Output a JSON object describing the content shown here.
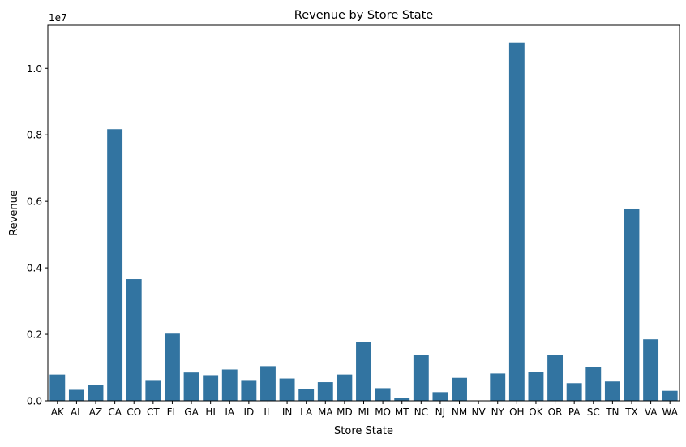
{
  "chart_data": {
    "type": "bar",
    "title": "Revenue by Store State",
    "xlabel": "Store State",
    "ylabel": "Revenue",
    "y_offset_label": "1e7",
    "y_scale": 10000000,
    "ylim": [
      0,
      11300000
    ],
    "yticks": [
      0,
      2000000,
      4000000,
      6000000,
      8000000,
      10000000
    ],
    "ytick_labels": [
      "0.0",
      "0.2",
      "0.4",
      "0.6",
      "0.8",
      "1.0"
    ],
    "grid": false,
    "legend": "none",
    "bar_color": "#3274a1",
    "categories": [
      "AK",
      "AL",
      "AZ",
      "CA",
      "CO",
      "CT",
      "FL",
      "GA",
      "HI",
      "IA",
      "ID",
      "IL",
      "IN",
      "LA",
      "MA",
      "MD",
      "MI",
      "MO",
      "MT",
      "NC",
      "NJ",
      "NM",
      "NV",
      "NY",
      "OH",
      "OK",
      "OR",
      "PA",
      "SC",
      "TN",
      "TX",
      "VA",
      "WA"
    ],
    "values": [
      790000,
      330000,
      480000,
      8170000,
      3660000,
      600000,
      2020000,
      850000,
      770000,
      940000,
      600000,
      1040000,
      670000,
      350000,
      560000,
      790000,
      1780000,
      380000,
      80000,
      1390000,
      260000,
      690000,
      0,
      820000,
      10770000,
      870000,
      1390000,
      530000,
      1020000,
      580000,
      5760000,
      1850000,
      300000
    ]
  }
}
